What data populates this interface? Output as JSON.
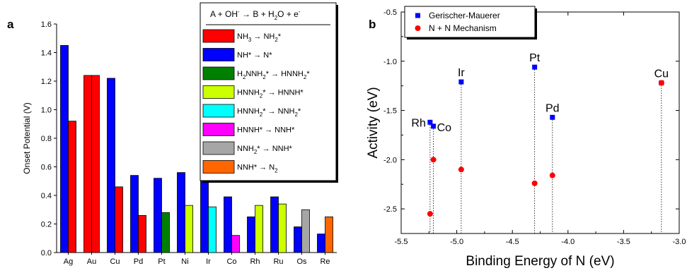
{
  "chart_data": [
    {
      "type": "bar",
      "panel_label": "a",
      "ylabel": "Onset Potential (V)",
      "xlabel": "",
      "ylim": [
        0,
        1.6
      ],
      "yticks": [
        0.0,
        0.2,
        0.4,
        0.6,
        0.8,
        1.0,
        1.2,
        1.4,
        1.6
      ],
      "categories": [
        "Ag",
        "Au",
        "Cu",
        "Pd",
        "Pt",
        "Ni",
        "Ir",
        "Co",
        "Rh",
        "Ru",
        "Os",
        "Re"
      ],
      "legend": {
        "title": {
          "pre": "A + OH",
          "sup1": "-",
          "mid": " → B + H",
          "sub1": "2",
          "mid2": "O + e",
          "sup2": "-"
        },
        "entries": [
          {
            "key": "nh3",
            "color": "#ff0000",
            "segs": [
              [
                "NH",
                ""
              ],
              [
                "3",
                "sub"
              ],
              [
                " → NH",
                ""
              ],
              [
                "2",
                "sub"
              ],
              [
                "*",
                ""
              ]
            ]
          },
          {
            "key": "nh",
            "color": "#0000ff",
            "segs": [
              [
                "NH* → N*",
                ""
              ]
            ]
          },
          {
            "key": "h2nnh2",
            "color": "#008000",
            "segs": [
              [
                "H",
                ""
              ],
              [
                "2",
                "sub"
              ],
              [
                "NNH",
                ""
              ],
              [
                "2",
                "sub"
              ],
              [
                "* → HNNH",
                ""
              ],
              [
                "2",
                "sub"
              ],
              [
                "*",
                ""
              ]
            ]
          },
          {
            "key": "hnnh2a",
            "color": "#ccff00",
            "segs": [
              [
                "HNNH",
                ""
              ],
              [
                "2",
                "sub"
              ],
              [
                "* → HNNH*",
                ""
              ]
            ]
          },
          {
            "key": "hnnh2b",
            "color": "#00ffff",
            "segs": [
              [
                "HNNH",
                ""
              ],
              [
                "2",
                "sub"
              ],
              [
                "* → NNH",
                ""
              ],
              [
                "2",
                "sub"
              ],
              [
                "*",
                ""
              ]
            ]
          },
          {
            "key": "hnnh",
            "color": "#ff00ff",
            "segs": [
              [
                "HNNH* → NNH*",
                ""
              ]
            ]
          },
          {
            "key": "nnh2",
            "color": "#a6a6a6",
            "segs": [
              [
                "NNH",
                ""
              ],
              [
                "2",
                "sub"
              ],
              [
                "* → NNH*",
                ""
              ]
            ]
          },
          {
            "key": "nnh",
            "color": "#ff6600",
            "segs": [
              [
                "NNH* → N",
                ""
              ],
              [
                "2",
                "sub"
              ]
            ]
          }
        ]
      },
      "bars": [
        [
          {
            "color": "#0000ff",
            "value": 1.45
          },
          {
            "color": "#ff0000",
            "value": 0.92
          }
        ],
        [
          {
            "color": "#ff0000",
            "value": 1.24
          },
          {
            "color": "#ff0000",
            "value": 1.24
          }
        ],
        [
          {
            "color": "#0000ff",
            "value": 1.22
          },
          {
            "color": "#ff0000",
            "value": 0.46
          }
        ],
        [
          {
            "color": "#0000ff",
            "value": 0.54
          },
          {
            "color": "#ff0000",
            "value": 0.26
          }
        ],
        [
          {
            "color": "#0000ff",
            "value": 0.52
          },
          {
            "color": "#008000",
            "value": 0.28
          }
        ],
        [
          {
            "color": "#0000ff",
            "value": 0.56
          },
          {
            "color": "#ccff00",
            "value": 0.33
          }
        ],
        [
          {
            "color": "#0000ff",
            "value": 0.5
          },
          {
            "color": "#00ffff",
            "value": 0.32
          }
        ],
        [
          {
            "color": "#0000ff",
            "value": 0.39
          },
          {
            "color": "#ff00ff",
            "value": 0.12
          }
        ],
        [
          {
            "color": "#0000ff",
            "value": 0.25
          },
          {
            "color": "#ccff00",
            "value": 0.33
          }
        ],
        [
          {
            "color": "#0000ff",
            "value": 0.39
          },
          {
            "color": "#ccff00",
            "value": 0.34
          }
        ],
        [
          {
            "color": "#0000ff",
            "value": 0.18
          },
          {
            "color": "#a6a6a6",
            "value": 0.3
          }
        ],
        [
          {
            "color": "#0000ff",
            "value": 0.13
          },
          {
            "color": "#ff6600",
            "value": 0.25
          }
        ]
      ]
    },
    {
      "type": "scatter",
      "panel_label": "b",
      "xlabel": "Binding Energy of N (eV)",
      "ylabel": "Activity (eV)",
      "xlim": [
        -5.5,
        -3.0
      ],
      "ylim": [
        -2.75,
        -0.5
      ],
      "xticks": [
        -5.5,
        -5.0,
        -4.5,
        -4.0,
        -3.5,
        -3.0
      ],
      "yticks": [
        -0.5,
        -1.0,
        -1.5,
        -2.0,
        -2.5
      ],
      "legend_placement": "top-left",
      "series": [
        {
          "name": "Gerischer-Mauerer",
          "color": "#0000ff",
          "marker": "square",
          "points": [
            {
              "x": -5.24,
              "y": -1.62
            },
            {
              "x": -5.21,
              "y": -1.66
            },
            {
              "x": -4.96,
              "y": -1.21
            },
            {
              "x": -4.3,
              "y": -1.06
            },
            {
              "x": -4.14,
              "y": -1.57
            },
            {
              "x": -3.16,
              "y": -1.22
            }
          ]
        },
        {
          "name": "N + N Mechanism",
          "color": "#ff0000",
          "marker": "circle",
          "points": [
            {
              "x": -5.24,
              "y": -2.55
            },
            {
              "x": -5.21,
              "y": -2.0
            },
            {
              "x": -4.96,
              "y": -2.1
            },
            {
              "x": -4.3,
              "y": -2.24
            },
            {
              "x": -4.14,
              "y": -2.16
            },
            {
              "x": -3.16,
              "y": -1.22
            }
          ]
        }
      ],
      "annotations": [
        {
          "text": "Rh",
          "x": -5.24,
          "y": -1.62,
          "anchor": "end"
        },
        {
          "text": "Co",
          "x": -5.21,
          "y": -1.66,
          "anchor": "start"
        },
        {
          "text": "Ir",
          "x": -4.96,
          "y": -1.21,
          "anchor": "middle"
        },
        {
          "text": "Pt",
          "x": -4.3,
          "y": -1.06,
          "anchor": "middle"
        },
        {
          "text": "Pd",
          "x": -4.14,
          "y": -1.57,
          "anchor": "middle"
        },
        {
          "text": "Cu",
          "x": -3.16,
          "y": -1.22,
          "anchor": "middle"
        }
      ],
      "droplines": [
        -5.24,
        -5.21,
        -4.96,
        -4.3,
        -4.14,
        -3.16
      ]
    }
  ]
}
